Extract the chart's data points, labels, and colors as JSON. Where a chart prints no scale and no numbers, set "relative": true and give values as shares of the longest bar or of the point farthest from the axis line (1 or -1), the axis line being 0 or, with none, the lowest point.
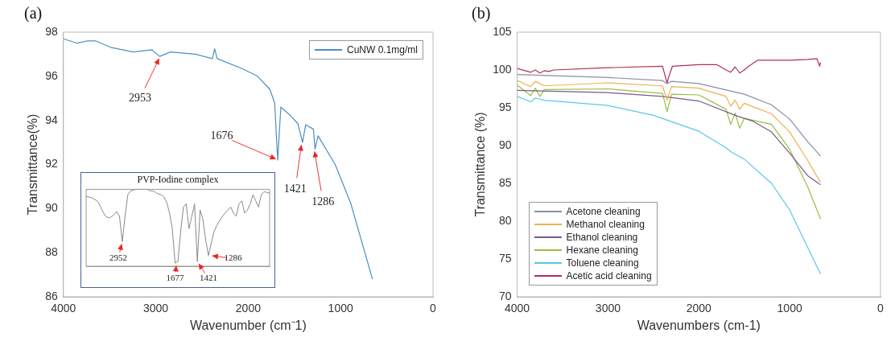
{
  "chart_data": [
    {
      "type": "line",
      "title": "(a)",
      "xlabel": "Wavenumber (cm⁻1)",
      "ylabel": "Transmittance(%)",
      "xlim": [
        4000,
        0
      ],
      "ylim": [
        86,
        98
      ],
      "xticks": [
        4000,
        3000,
        2000,
        1000,
        0
      ],
      "yticks": [
        86,
        88,
        90,
        92,
        94,
        96,
        98
      ],
      "legend": "top right",
      "marker": "none",
      "series": [
        {
          "name": "CuNW 0.1mg/ml",
          "color": "#4a8fc0",
          "x": [
            4000,
            3849,
            3748,
            3647,
            3479,
            3244,
            3042,
            2958,
            2840,
            2571,
            2387,
            2363,
            2336,
            2067,
            1899,
            1765,
            1714,
            1681,
            1647,
            1563,
            1462,
            1412,
            1378,
            1294,
            1277,
            1244,
            1059,
            891,
            655
          ],
          "values": [
            97.7,
            97.5,
            97.6,
            97.6,
            97.3,
            97.1,
            97.2,
            96.9,
            97.1,
            97.0,
            96.8,
            97.25,
            96.8,
            96.35,
            96.0,
            95.4,
            94.8,
            92.2,
            94.6,
            94.3,
            93.85,
            93.0,
            93.8,
            93.6,
            92.7,
            93.3,
            92.0,
            90.25,
            86.8
          ]
        }
      ],
      "annotations": [
        {
          "text": "2953",
          "x": 2953,
          "y": 96.9
        },
        {
          "text": "1676",
          "x": 1676,
          "y": 92.2
        },
        {
          "text": "1421",
          "x": 1421,
          "y": 93.0
        },
        {
          "text": "1286",
          "x": 1286,
          "y": 92.7
        }
      ]
    },
    {
      "type": "line",
      "title": "PVP-Iodine complex",
      "relative": true,
      "marker": "none",
      "categories": [
        null,
        null,
        null,
        null,
        null,
        null,
        null,
        null,
        null,
        null,
        null,
        null,
        null,
        null,
        null,
        null,
        null,
        null,
        null,
        null,
        null,
        null,
        null,
        null,
        null,
        null,
        null,
        null,
        null,
        null,
        null,
        null,
        null,
        null,
        null,
        null,
        null,
        null,
        null,
        null,
        null,
        null,
        null,
        null,
        null,
        null,
        null,
        null,
        null,
        null,
        null,
        null,
        null,
        null,
        null,
        null,
        null,
        null,
        null,
        null,
        null,
        null,
        null,
        null,
        null,
        null,
        null
      ],
      "series": [
        {
          "color": "#8a8a8a",
          "values": [
            0.91,
            0.9,
            0.89,
            0.87,
            0.85,
            0.79,
            0.71,
            0.65,
            0.63,
            0.64,
            0.67,
            0.71,
            0.65,
            0.32,
            0.65,
            0.93,
            0.98,
            0.99,
            1,
            1,
            1,
            1,
            1,
            0.98,
            0.98,
            0.96,
            0.94,
            0.93,
            0.9,
            0.83,
            0.69,
            0.49,
            0.04,
            0.06,
            0.45,
            0.77,
            0.81,
            0.49,
            0.65,
            0.81,
            0.06,
            0.73,
            0.61,
            0.34,
            0.14,
            0.3,
            0.45,
            0.53,
            0.59,
            0.65,
            0.69,
            0.73,
            0.77,
            0.69,
            0.65,
            0.81,
            0.85,
            0.69,
            0.73,
            0.81,
            0.93,
            0.85,
            0.77,
            0.93,
            0.97,
            0.96,
            0.95
          ]
        }
      ],
      "annotations": [
        "2952",
        "1677",
        "1421",
        "1286"
      ]
    },
    {
      "type": "line",
      "title": "(b)",
      "xlabel": "Wavenumbers (cm-1)",
      "ylabel": "Transmittance (%)",
      "xlim": [
        4000,
        0
      ],
      "ylim": [
        70,
        105
      ],
      "xticks": [
        4000,
        3000,
        2000,
        1000,
        0
      ],
      "yticks": [
        70,
        75,
        80,
        85,
        90,
        95,
        100,
        105
      ],
      "legend": "bottom left",
      "marker": "none",
      "series": [
        {
          "name": "Acetone cleaning",
          "color": "#8c8ca8",
          "x": [
            4000,
            3000,
            2400,
            2350,
            2300,
            2000,
            1500,
            1200,
            1000,
            800,
            660
          ],
          "values": [
            99.4,
            99.0,
            98.6,
            98.2,
            98.5,
            98.2,
            96.8,
            95.4,
            93.5,
            90.5,
            88.6
          ]
        },
        {
          "name": "Methanol cleaning",
          "color": "#efb050",
          "x": [
            4000,
            3850,
            3800,
            3700,
            3000,
            2400,
            2350,
            2300,
            2000,
            1700,
            1650,
            1600,
            1550,
            1500,
            1200,
            1000,
            800,
            660
          ],
          "values": [
            98.6,
            97.8,
            98.5,
            97.9,
            98.3,
            97.9,
            96.0,
            97.8,
            97.6,
            96.5,
            95.2,
            96.0,
            94.8,
            95.6,
            94.2,
            91.8,
            88.0,
            85.1
          ]
        },
        {
          "name": "Ethanol cleaning",
          "color": "#7a5a8a",
          "x": [
            4000,
            3000,
            2400,
            2000,
            1600,
            1400,
            1200,
            1000,
            800,
            660
          ],
          "values": [
            97.3,
            97.0,
            96.5,
            95.9,
            94.0,
            93.2,
            91.8,
            89.0,
            86.0,
            84.8
          ]
        },
        {
          "name": "Hexane cleaning",
          "color": "#96bf42",
          "x": [
            4000,
            3850,
            3800,
            3750,
            3700,
            3000,
            2400,
            2350,
            2300,
            2000,
            1700,
            1650,
            1600,
            1550,
            1500,
            1200,
            1000,
            800,
            660
          ],
          "values": [
            98.0,
            96.6,
            97.6,
            96.5,
            97.4,
            97.5,
            96.9,
            94.5,
            96.8,
            96.7,
            94.8,
            92.8,
            94.3,
            92.3,
            93.6,
            92.8,
            89.5,
            84.5,
            80.3
          ]
        },
        {
          "name": "Toluene cleaning",
          "color": "#5ac8e8",
          "x": [
            4000,
            3850,
            3800,
            3700,
            3000,
            2500,
            2000,
            1700,
            1650,
            1500,
            1200,
            1000,
            800,
            660
          ],
          "values": [
            96.5,
            95.8,
            96.3,
            96.0,
            95.3,
            94.0,
            91.9,
            89.7,
            89.2,
            88.2,
            85.0,
            81.5,
            76.5,
            73.0
          ]
        },
        {
          "name": "Acetic acid cleaning",
          "color": "#b03050",
          "x": [
            4000,
            3850,
            3800,
            3750,
            3700,
            3650,
            3600,
            3000,
            2400,
            2350,
            2320,
            2290,
            2000,
            1800,
            1700,
            1650,
            1600,
            1550,
            1500,
            1450,
            1350,
            1000,
            800,
            700,
            670,
            660
          ],
          "values": [
            100.2,
            99.7,
            100.0,
            99.6,
            99.9,
            99.8,
            100.0,
            100.3,
            100.5,
            98.3,
            99.5,
            100.5,
            100.7,
            100.7,
            100.0,
            99.7,
            100.4,
            99.6,
            100.0,
            100.5,
            101.3,
            101.3,
            101.4,
            101.5,
            100.5,
            101.0
          ]
        }
      ]
    }
  ]
}
